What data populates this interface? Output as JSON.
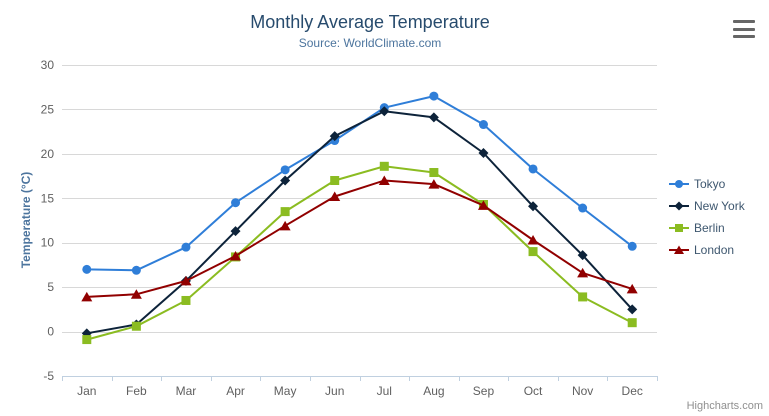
{
  "chart": {
    "credits": "Highcharts.com"
  },
  "icons": {
    "export_menu": "hamburger-icon"
  },
  "colors": {
    "title": "#274b6d",
    "subtitle": "#4d759e",
    "y_axis_title": "#4d759e",
    "axis_labels": "#606060",
    "legend_text": "#3e576f",
    "gridline": "#d8d8d8",
    "axis_line": "#c0d0e0",
    "credits": "#909090",
    "export_icon": "#666666",
    "background": "#ffffff"
  },
  "chart_data": {
    "type": "line",
    "title": "Monthly Average Temperature",
    "subtitle": "Source: WorldClimate.com",
    "xlabel": "",
    "ylabel": "Temperature (°C)",
    "ylim": [
      -5,
      30
    ],
    "ytick_step": 5,
    "ytick_labels": [
      "-5",
      "0",
      "5",
      "10",
      "15",
      "20",
      "25",
      "30"
    ],
    "grid": true,
    "legend_position": "right",
    "categories": [
      "Jan",
      "Feb",
      "Mar",
      "Apr",
      "May",
      "Jun",
      "Jul",
      "Aug",
      "Sep",
      "Oct",
      "Nov",
      "Dec"
    ],
    "series": [
      {
        "name": "Tokyo",
        "color": "#2f7ed8",
        "marker": "circle",
        "values": [
          7.0,
          6.9,
          9.5,
          14.5,
          18.2,
          21.5,
          25.2,
          26.5,
          23.3,
          18.3,
          13.9,
          9.6
        ]
      },
      {
        "name": "New York",
        "color": "#0d233a",
        "marker": "diamond",
        "values": [
          -0.2,
          0.8,
          5.7,
          11.3,
          17.0,
          22.0,
          24.8,
          24.1,
          20.1,
          14.1,
          8.6,
          2.5
        ]
      },
      {
        "name": "Berlin",
        "color": "#8bbc21",
        "marker": "square",
        "values": [
          -0.9,
          0.6,
          3.5,
          8.4,
          13.5,
          17.0,
          18.6,
          17.9,
          14.3,
          9.0,
          3.9,
          1.0
        ]
      },
      {
        "name": "London",
        "color": "#910000",
        "marker": "triangle",
        "values": [
          3.9,
          4.2,
          5.7,
          8.5,
          11.9,
          15.2,
          17.0,
          16.6,
          14.2,
          10.3,
          6.6,
          4.8
        ]
      }
    ]
  }
}
